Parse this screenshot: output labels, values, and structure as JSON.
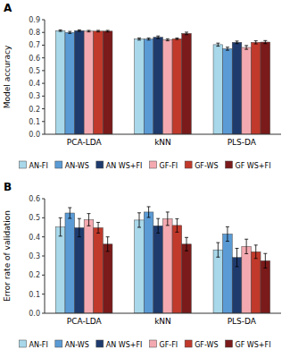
{
  "chart_data": [
    {
      "type": "bar",
      "title": "A",
      "ylabel": "Model accuracy",
      "categories": [
        "PCA-LDA",
        "kNN",
        "PLS-DA"
      ],
      "series": [
        {
          "name": "AN-FI",
          "color": "#a8d8ea",
          "values": [
            0.814,
            0.748,
            0.704
          ],
          "errors": [
            0.006,
            0.008,
            0.012
          ]
        },
        {
          "name": "AN-WS",
          "color": "#5b9bd5",
          "values": [
            0.8,
            0.748,
            0.672
          ],
          "errors": [
            0.008,
            0.008,
            0.012
          ]
        },
        {
          "name": "AN WS+FI",
          "color": "#1f3b6e",
          "values": [
            0.814,
            0.762,
            0.722
          ],
          "errors": [
            0.006,
            0.01,
            0.01
          ]
        },
        {
          "name": "GF-FI",
          "color": "#f4a9b0",
          "values": [
            0.81,
            0.742,
            0.682
          ],
          "errors": [
            0.006,
            0.008,
            0.015
          ]
        },
        {
          "name": "GF-WS",
          "color": "#c0392b",
          "values": [
            0.81,
            0.75,
            0.722
          ],
          "errors": [
            0.006,
            0.006,
            0.012
          ]
        },
        {
          "name": "GF WS+FI",
          "color": "#7b1a1a",
          "values": [
            0.81,
            0.792,
            0.724
          ],
          "errors": [
            0.006,
            0.01,
            0.012
          ]
        }
      ],
      "ylim": [
        0.0,
        0.9
      ],
      "yticks": [
        {
          "value": 0,
          "label": "0.0"
        },
        0.1,
        0.2,
        0.3,
        0.4,
        0.5,
        0.6,
        0.7,
        0.8,
        0.9
      ],
      "grid": false,
      "legend": "bottom"
    },
    {
      "type": "bar",
      "title": "B",
      "ylabel": "Error rate of validation",
      "categories": [
        "PCA-LDA",
        "kNN",
        "PLS-DA"
      ],
      "series": [
        {
          "name": "AN-FI",
          "color": "#a8d8ea",
          "values": [
            0.452,
            0.488,
            0.332
          ],
          "errors": [
            0.048,
            0.038,
            0.038
          ]
        },
        {
          "name": "AN-WS",
          "color": "#5b9bd5",
          "values": [
            0.525,
            0.53,
            0.415
          ],
          "errors": [
            0.028,
            0.028,
            0.038
          ]
        },
        {
          "name": "AN WS+FI",
          "color": "#1f3b6e",
          "values": [
            0.448,
            0.458,
            0.292
          ],
          "errors": [
            0.048,
            0.038,
            0.048
          ]
        },
        {
          "name": "GF-FI",
          "color": "#f4a9b0",
          "values": [
            0.49,
            0.495,
            0.35
          ],
          "errors": [
            0.032,
            0.035,
            0.038
          ]
        },
        {
          "name": "GF-WS",
          "color": "#c0392b",
          "values": [
            0.448,
            0.46,
            0.322
          ],
          "errors": [
            0.028,
            0.035,
            0.035
          ]
        },
        {
          "name": "GF WS+FI",
          "color": "#7b1a1a",
          "values": [
            0.362,
            0.362,
            0.275
          ],
          "errors": [
            0.038,
            0.035,
            0.038
          ]
        }
      ],
      "ylim": [
        0.0,
        0.6
      ],
      "yticks": [
        {
          "value": 0,
          "label": "0.0"
        },
        0.1,
        0.2,
        0.3,
        0.4,
        0.5,
        0.6
      ],
      "grid": false,
      "legend": "bottom"
    }
  ]
}
